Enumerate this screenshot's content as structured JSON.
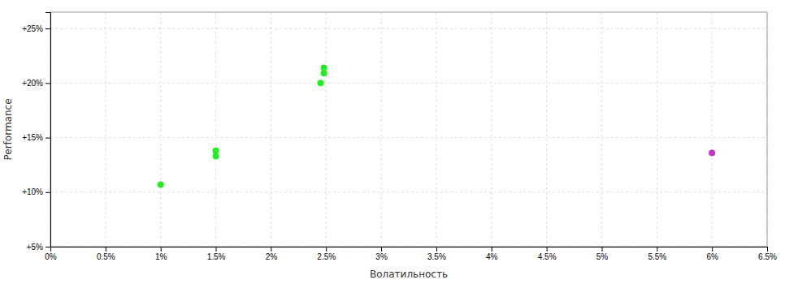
{
  "chart_data": {
    "type": "scatter",
    "xlabel": "Волатильность",
    "ylabel": "Performance",
    "xlim": [
      0.0,
      0.065
    ],
    "ylim": [
      0.05,
      0.265
    ],
    "xticks": [
      {
        "value": 0.0,
        "label": "0%"
      },
      {
        "value": 0.005,
        "label": "0.5%"
      },
      {
        "value": 0.01,
        "label": "1%"
      },
      {
        "value": 0.015,
        "label": "1.5%"
      },
      {
        "value": 0.02,
        "label": "2%"
      },
      {
        "value": 0.025,
        "label": "2.5%"
      },
      {
        "value": 0.03,
        "label": "3%"
      },
      {
        "value": 0.035,
        "label": "3.5%"
      },
      {
        "value": 0.04,
        "label": "4%"
      },
      {
        "value": 0.045,
        "label": "4.5%"
      },
      {
        "value": 0.05,
        "label": "5%"
      },
      {
        "value": 0.055,
        "label": "5.5%"
      },
      {
        "value": 0.06,
        "label": "6%"
      },
      {
        "value": 0.065,
        "label": "6.5%"
      }
    ],
    "yticks": [
      {
        "value": 0.05,
        "label": "+5%"
      },
      {
        "value": 0.1,
        "label": "+10%"
      },
      {
        "value": 0.15,
        "label": "+15%"
      },
      {
        "value": 0.2,
        "label": "+20%"
      },
      {
        "value": 0.25,
        "label": "+25%"
      }
    ],
    "grid": true,
    "series": [
      {
        "color": "#22ee22",
        "x": [
          0.01,
          0.015,
          0.015,
          0.0248,
          0.0248,
          0.0245
        ],
        "values": [
          0.107,
          0.138,
          0.133,
          0.214,
          0.209,
          0.2
        ]
      },
      {
        "color": "#cc33cc",
        "x": [
          0.06
        ],
        "values": [
          0.136
        ]
      }
    ]
  }
}
